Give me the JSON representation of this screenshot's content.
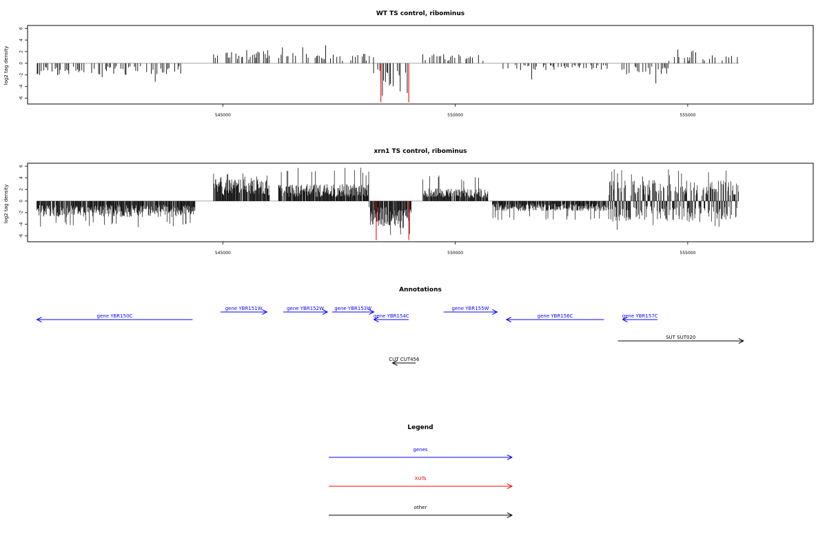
{
  "colors": {
    "gene": "#0000ff",
    "xut": "#ff0000",
    "other": "#000000",
    "signal": "#000000",
    "highlight": "#ff0000",
    "baseline": "#888888"
  },
  "chart_data": [
    {
      "type": "bar",
      "title": "WT TS control, ribominus",
      "ylabel": "log2 tag density",
      "xlim": [
        540800,
        557700
      ],
      "ylim": [
        -7,
        6.5
      ],
      "x_ticks": [
        545000,
        550000,
        555000
      ],
      "y_ticks": [
        -6,
        -4,
        -2,
        0,
        2,
        4,
        6
      ],
      "x_ticks_labels": [
        "545000",
        "550000",
        "555000"
      ],
      "y_ticks_labels": [
        "-6",
        "-4",
        "-2",
        "0",
        "2",
        "4",
        "6"
      ],
      "signal_range": [
        541000,
        556100
      ],
      "density": "sparse",
      "seed": 7,
      "regions": [
        {
          "x0": 541000,
          "x1": 544100,
          "sign": -1,
          "mean": 1.4,
          "max": 3.2
        },
        {
          "x0": 544800,
          "x1": 546000,
          "sign": 1,
          "mean": 1.6,
          "max": 4.0
        },
        {
          "x0": 546200,
          "x1": 548250,
          "sign": 1,
          "mean": 1.2,
          "max": 3.5
        },
        {
          "x0": 548250,
          "x1": 549000,
          "sign": -1,
          "mean": 2.8,
          "max": 6.0
        },
        {
          "x0": 549300,
          "x1": 550700,
          "sign": 1,
          "mean": 1.1,
          "max": 4.8
        },
        {
          "x0": 550900,
          "x1": 553300,
          "sign": -1,
          "mean": 0.8,
          "max": 2.8
        },
        {
          "x0": 553500,
          "x1": 554600,
          "sign": -1,
          "mean": 1.5,
          "max": 3.5
        },
        {
          "x0": 554600,
          "x1": 556100,
          "sign": 1,
          "mean": 1.0,
          "max": 2.5
        }
      ],
      "highlights": [
        {
          "x": 548400,
          "y": -6.7
        },
        {
          "x": 549000,
          "y": -6.7
        }
      ]
    },
    {
      "type": "bar",
      "title": "xrn1 TS control, ribominus",
      "ylabel": "log2 tag density",
      "xlim": [
        540800,
        557700
      ],
      "ylim": [
        -7,
        6.5
      ],
      "x_ticks": [
        545000,
        550000,
        555000
      ],
      "y_ticks": [
        -6,
        -4,
        -2,
        0,
        2,
        4,
        6
      ],
      "x_ticks_labels": [
        "545000",
        "550000",
        "555000"
      ],
      "y_ticks_labels": [
        "-6",
        "-4",
        "-2",
        "0",
        "2",
        "4",
        "6"
      ],
      "signal_range": [
        541000,
        556100
      ],
      "density": "dense",
      "seed": 13,
      "regions": [
        {
          "x0": 541000,
          "x1": 544400,
          "sign": -1,
          "mean": 1.9,
          "max": 4.5
        },
        {
          "x0": 544800,
          "x1": 546000,
          "sign": 1,
          "mean": 2.6,
          "max": 4.8
        },
        {
          "x0": 546200,
          "x1": 548150,
          "sign": 1,
          "mean": 2.0,
          "max": 5.8
        },
        {
          "x0": 548150,
          "x1": 549050,
          "sign": -1,
          "mean": 3.0,
          "max": 6.0
        },
        {
          "x0": 549300,
          "x1": 550700,
          "sign": 1,
          "mean": 1.5,
          "max": 4.5
        },
        {
          "x0": 550800,
          "x1": 553300,
          "sign": -1,
          "mean": 1.2,
          "max": 3.3
        },
        {
          "x0": 553300,
          "x1": 556100,
          "sign": 0,
          "mean": 2.5,
          "max": 5.5
        }
      ],
      "highlights": [
        {
          "x": 548300,
          "y": -6.7
        },
        {
          "x": 549000,
          "y": -6.7
        }
      ]
    }
  ],
  "annotations": {
    "title": "Annotations",
    "items": [
      {
        "label": "gene YBR150C",
        "x0": 541000,
        "x1": 544350,
        "dir": "left",
        "type": "gene",
        "row": 1
      },
      {
        "label": "gene YBR151W",
        "x0": 544950,
        "x1": 545950,
        "dir": "right",
        "type": "gene",
        "row": 0
      },
      {
        "label": "gene YBR152W",
        "x0": 546300,
        "x1": 547250,
        "dir": "right",
        "type": "gene",
        "row": 0
      },
      {
        "label": "gene YBR153W",
        "x0": 547350,
        "x1": 548250,
        "dir": "right",
        "type": "gene",
        "row": 0
      },
      {
        "label": "gene YBR154C",
        "x0": 548250,
        "x1": 549000,
        "dir": "left",
        "type": "gene",
        "row": 1
      },
      {
        "label": "gene YBR155W",
        "x0": 549750,
        "x1": 550900,
        "dir": "right",
        "type": "gene",
        "row": 0
      },
      {
        "label": "gene YBR156C",
        "x0": 551100,
        "x1": 553200,
        "dir": "left",
        "type": "gene",
        "row": 1
      },
      {
        "label": "gene YBR157C",
        "x0": 553600,
        "x1": 554350,
        "dir": "left",
        "type": "gene",
        "row": 1
      },
      {
        "label": "SUT SUT020",
        "x0": 553500,
        "x1": 556200,
        "dir": "right",
        "type": "other",
        "row": 2
      },
      {
        "label": "CUT CUT456",
        "x0": 548650,
        "x1": 549150,
        "dir": "left",
        "type": "other",
        "row": 3
      }
    ]
  },
  "legend": {
    "title": "Legend",
    "entries": [
      {
        "label": "genes",
        "type": "gene"
      },
      {
        "label": "XUTs",
        "type": "xut"
      },
      {
        "label": "other",
        "type": "other"
      }
    ]
  }
}
